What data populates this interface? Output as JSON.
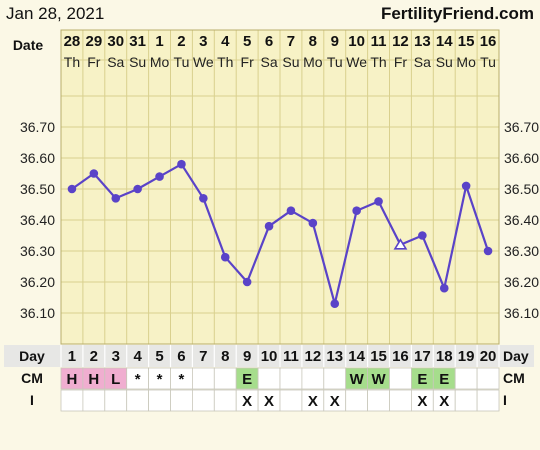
{
  "header": {
    "date": "Jan 28, 2021",
    "site": "FertilityFriend.com"
  },
  "row_labels": {
    "date": "Date",
    "day": "Day",
    "cm": "CM",
    "i": "I"
  },
  "colors": {
    "background": "#fbf8e6",
    "plot": "#f7f2c6",
    "grid": "#d9d08e",
    "line": "#5a43c8",
    "pink": "#f0aed0",
    "green": "#a6dd8c",
    "row": "#e7e7e5"
  },
  "chart_data": {
    "type": "line",
    "title": "",
    "xlabel": "",
    "ylabel": "",
    "ylim": [
      36.0,
      36.8
    ],
    "y_ticks": [
      "36.10",
      "36.20",
      "36.30",
      "36.40",
      "36.50",
      "36.60",
      "36.70"
    ],
    "dates": [
      "28",
      "29",
      "30",
      "31",
      "1",
      "2",
      "3",
      "4",
      "5",
      "6",
      "7",
      "8",
      "9",
      "10",
      "11",
      "12",
      "13",
      "14",
      "15",
      "16"
    ],
    "weekdays": [
      "Th",
      "Fr",
      "Sa",
      "Su",
      "Mo",
      "Tu",
      "We",
      "Th",
      "Fr",
      "Sa",
      "Su",
      "Mo",
      "Tu",
      "We",
      "Th",
      "Fr",
      "Sa",
      "Su",
      "Mo",
      "Tu"
    ],
    "days": [
      "1",
      "2",
      "3",
      "4",
      "5",
      "6",
      "7",
      "8",
      "9",
      "10",
      "11",
      "12",
      "13",
      "14",
      "15",
      "16",
      "17",
      "18",
      "19",
      "20"
    ],
    "series": [
      {
        "values": [
          36.5,
          36.55,
          36.47,
          36.5,
          36.54,
          36.58,
          36.47,
          36.28,
          36.2,
          36.38,
          36.43,
          36.39,
          36.13,
          36.43,
          36.46,
          36.32,
          36.35,
          36.18,
          36.51,
          36.3
        ],
        "open_marker_days": [
          "16"
        ]
      }
    ],
    "cm": [
      "H",
      "H",
      "L",
      "*",
      "*",
      "*",
      "",
      "",
      "E",
      "",
      "",
      "",
      "",
      "W",
      "W",
      "",
      "E",
      "E",
      "",
      ""
    ],
    "cm_colors": [
      "pink",
      "pink",
      "pink",
      "",
      "",
      "",
      "",
      "",
      "green",
      "",
      "",
      "",
      "",
      "green",
      "green",
      "",
      "green",
      "green",
      "",
      ""
    ],
    "intercourse": [
      "",
      "",
      "",
      "",
      "",
      "",
      "",
      "",
      "X",
      "X",
      "",
      "X",
      "X",
      "",
      "",
      "",
      "X",
      "X",
      "",
      ""
    ],
    "grid": true
  }
}
